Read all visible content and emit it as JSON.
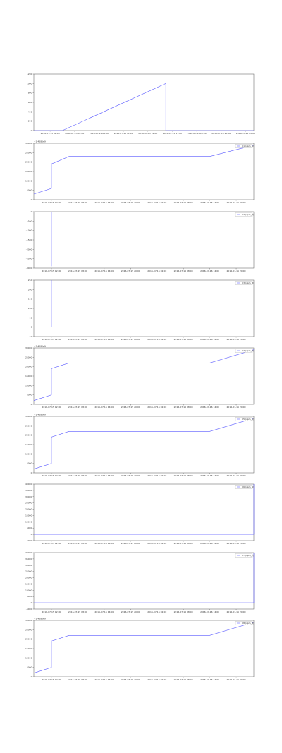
{
  "chart_data": [
    {
      "type": "line",
      "xlim": [
        0,
        27
      ],
      "ylim": [
        0,
        1200
      ],
      "yticks": [
        0,
        200,
        400,
        600,
        800,
        1000,
        1200
      ],
      "xticks": [
        {
          "value": 2,
          "label": "2016-07-15 02:00"
        },
        {
          "value": 5,
          "label": "2016-07-15 05:00"
        },
        {
          "value": 8,
          "label": "2016-07-15 08:00"
        },
        {
          "value": 11,
          "label": "2016-07-15 11:00"
        },
        {
          "value": 14,
          "label": "2016-07-15 14:00"
        },
        {
          "value": 17,
          "label": "2016-07-15 17:00"
        },
        {
          "value": 20,
          "label": "2016-07-15 20:00"
        },
        {
          "value": 23,
          "label": "2016-07-15 23:00"
        },
        {
          "value": 26,
          "label": "2016-07-16 02:00"
        }
      ],
      "x": [
        0,
        3.5,
        16.2,
        16.2,
        27
      ],
      "series": [
        {
          "color": "#5a5aff",
          "values": [
            0,
            0,
            1000,
            0,
            0
          ]
        }
      ]
    },
    {
      "type": "line",
      "xlim": [
        0,
        100
      ],
      "ylim": [
        0,
        30000
      ],
      "yticks": [
        0,
        5000,
        10000,
        15000,
        20000,
        25000,
        30000
      ],
      "y_offset_label": "+1.4685e9",
      "xticks": [
        {
          "value": 8,
          "label": "2016-07-15 02:00"
        },
        {
          "value": 20,
          "label": "2016-07-15 08:00"
        },
        {
          "value": 32,
          "label": "2016-07-15 14:00"
        },
        {
          "value": 44,
          "label": "2016-07-15 20:00"
        },
        {
          "value": 56,
          "label": "2016-07-16 02:00"
        },
        {
          "value": 68,
          "label": "2016-07-16 08:00"
        },
        {
          "value": 80,
          "label": "2016-07-16 14:00"
        },
        {
          "value": 92,
          "label": "2016-07-16 20:00"
        }
      ],
      "x": [
        0,
        8,
        8,
        16,
        80,
        100
      ],
      "series": [
        {
          "name": "C1 (cpm_1)",
          "color": "#5a5aff",
          "values": [
            3000,
            6000,
            19000,
            23000,
            23000,
            29000
          ]
        }
      ]
    },
    {
      "type": "line",
      "xlim": [
        0,
        100
      ],
      "ylim": [
        -3000,
        0
      ],
      "yticks": [
        -3000,
        -2500,
        -2000,
        -1500,
        -1000,
        -500,
        0
      ],
      "xticks": [
        {
          "value": 8,
          "label": "2016-07-15 02:00"
        },
        {
          "value": 20,
          "label": "2016-07-15 08:00"
        },
        {
          "value": 32,
          "label": "2016-07-15 14:00"
        },
        {
          "value": 44,
          "label": "2016-07-15 20:00"
        },
        {
          "value": 56,
          "label": "2016-07-16 02:00"
        },
        {
          "value": 68,
          "label": "2016-07-16 08:00"
        },
        {
          "value": 80,
          "label": "2016-07-16 14:00"
        },
        {
          "value": 92,
          "label": "2016-07-16 20:00"
        }
      ],
      "x": [
        8,
        8
      ],
      "series": [
        {
          "name": "C2 (cpm_2)",
          "color": "#5a5aff",
          "values": [
            0,
            -2900
          ]
        }
      ]
    },
    {
      "type": "line",
      "xlim": [
        0,
        100
      ],
      "ylim": [
        -50,
        250
      ],
      "yticks": [
        -50,
        0,
        50,
        100,
        150,
        200,
        250
      ],
      "xticks": [
        {
          "value": 8,
          "label": "2016-07-15 02:00"
        },
        {
          "value": 20,
          "label": "2016-07-15 08:00"
        },
        {
          "value": 32,
          "label": "2016-07-15 14:00"
        },
        {
          "value": 44,
          "label": "2016-07-15 20:00"
        },
        {
          "value": 56,
          "label": "2016-07-16 02:00"
        },
        {
          "value": 68,
          "label": "2016-07-16 08:00"
        },
        {
          "value": 80,
          "label": "2016-07-16 14:00"
        },
        {
          "value": 92,
          "label": "2016-07-16 20:00"
        }
      ],
      "x": [
        0,
        8,
        8,
        8,
        100
      ],
      "series": [
        {
          "name": "C3 (cpm_3)",
          "color": "#5a5aff",
          "values": [
            0,
            0,
            250,
            0,
            0
          ]
        }
      ]
    },
    {
      "type": "line",
      "xlim": [
        0,
        100
      ],
      "ylim": [
        0,
        30000
      ],
      "yticks": [
        0,
        5000,
        10000,
        15000,
        20000,
        25000,
        30000
      ],
      "y_offset_label": "+1.4685e9",
      "xticks": [
        {
          "value": 8,
          "label": "2016-07-15 02:00"
        },
        {
          "value": 20,
          "label": "2016-07-15 08:00"
        },
        {
          "value": 32,
          "label": "2016-07-15 14:00"
        },
        {
          "value": 44,
          "label": "2016-07-15 20:00"
        },
        {
          "value": 56,
          "label": "2016-07-16 02:00"
        },
        {
          "value": 68,
          "label": "2016-07-16 08:00"
        },
        {
          "value": 80,
          "label": "2016-07-16 14:00"
        },
        {
          "value": 92,
          "label": "2016-07-16 20:00"
        }
      ],
      "x": [
        0,
        8,
        8,
        16,
        80,
        100
      ],
      "series": [
        {
          "name": "C4 (cpm_4)",
          "color": "#5a5aff",
          "values": [
            2000,
            5000,
            19000,
            22000,
            22000,
            29000
          ]
        }
      ]
    },
    {
      "type": "line",
      "xlim": [
        0,
        100
      ],
      "ylim": [
        0,
        30000
      ],
      "yticks": [
        0,
        5000,
        10000,
        15000,
        20000,
        25000,
        30000
      ],
      "y_offset_label": "+1.4685e9",
      "xticks": [
        {
          "value": 8,
          "label": "2016-07-15 02:00"
        },
        {
          "value": 20,
          "label": "2016-07-15 08:00"
        },
        {
          "value": 32,
          "label": "2016-07-15 14:00"
        },
        {
          "value": 44,
          "label": "2016-07-15 20:00"
        },
        {
          "value": 56,
          "label": "2016-07-16 02:00"
        },
        {
          "value": 68,
          "label": "2016-07-16 08:00"
        },
        {
          "value": 80,
          "label": "2016-07-16 14:00"
        },
        {
          "value": 92,
          "label": "2016-07-16 20:00"
        }
      ],
      "x": [
        0,
        8,
        8,
        16,
        80,
        100
      ],
      "series": [
        {
          "name": "C5 (cpm_5)",
          "color": "#5a5aff",
          "values": [
            2000,
            5000,
            19000,
            22000,
            22000,
            29000
          ]
        }
      ]
    },
    {
      "type": "line",
      "xlim": [
        0,
        100
      ],
      "ylim": [
        -5000,
        40000
      ],
      "yticks": [
        -5000,
        0,
        5000,
        10000,
        15000,
        20000,
        25000,
        30000,
        35000,
        40000
      ],
      "xticks": [
        {
          "value": 8,
          "label": "2016-07-15 02:00"
        },
        {
          "value": 20,
          "label": "2016-07-15 08:00"
        },
        {
          "value": 32,
          "label": "2016-07-15 14:00"
        },
        {
          "value": 44,
          "label": "2016-07-15 20:00"
        },
        {
          "value": 56,
          "label": "2016-07-16 02:00"
        },
        {
          "value": 68,
          "label": "2016-07-16 08:00"
        },
        {
          "value": 80,
          "label": "2016-07-16 14:00"
        },
        {
          "value": 92,
          "label": "2016-07-16 20:00"
        }
      ],
      "x": [
        0,
        100,
        100
      ],
      "series": [
        {
          "name": "C6 (cpm_6)",
          "color": "#5a5aff",
          "values": [
            0,
            0,
            40000
          ]
        }
      ]
    },
    {
      "type": "line",
      "xlim": [
        0,
        100
      ],
      "ylim": [
        -5000,
        40000
      ],
      "yticks": [
        -5000,
        0,
        5000,
        10000,
        15000,
        20000,
        25000,
        30000,
        35000,
        40000
      ],
      "xticks": [
        {
          "value": 8,
          "label": "2016-07-15 02:00"
        },
        {
          "value": 20,
          "label": "2016-07-15 08:00"
        },
        {
          "value": 32,
          "label": "2016-07-15 14:00"
        },
        {
          "value": 44,
          "label": "2016-07-15 20:00"
        },
        {
          "value": 56,
          "label": "2016-07-16 02:00"
        },
        {
          "value": 68,
          "label": "2016-07-16 08:00"
        },
        {
          "value": 80,
          "label": "2016-07-16 14:00"
        },
        {
          "value": 92,
          "label": "2016-07-16 20:00"
        }
      ],
      "x": [
        0,
        100,
        100
      ],
      "series": [
        {
          "name": "C7 (cpm_7)",
          "color": "#5a5aff",
          "values": [
            0,
            0,
            40000
          ]
        }
      ]
    },
    {
      "type": "line",
      "xlim": [
        0,
        100
      ],
      "ylim": [
        0,
        30000
      ],
      "yticks": [
        0,
        5000,
        10000,
        15000,
        20000,
        25000,
        30000
      ],
      "y_offset_label": "+1.4685e9",
      "xticks": [
        {
          "value": 8,
          "label": "2016-07-15 02:00"
        },
        {
          "value": 20,
          "label": "2016-07-15 08:00"
        },
        {
          "value": 32,
          "label": "2016-07-15 14:00"
        },
        {
          "value": 44,
          "label": "2016-07-15 20:00"
        },
        {
          "value": 56,
          "label": "2016-07-16 02:00"
        },
        {
          "value": 68,
          "label": "2016-07-16 08:00"
        },
        {
          "value": 80,
          "label": "2016-07-16 14:00"
        },
        {
          "value": 92,
          "label": "2016-07-16 20:00"
        }
      ],
      "x": [
        0,
        8,
        8,
        16,
        80,
        100
      ],
      "series": [
        {
          "name": "C8 (cpm_8)",
          "color": "#5a5aff",
          "values": [
            2000,
            5000,
            19000,
            22000,
            22000,
            29000
          ]
        }
      ]
    }
  ]
}
